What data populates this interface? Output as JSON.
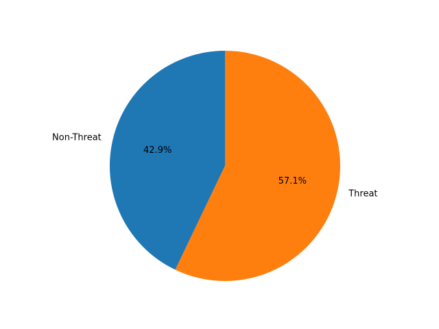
{
  "chart_data": {
    "type": "pie",
    "title": "",
    "categories": [
      "Non-Threat",
      "Threat"
    ],
    "values": [
      42.9,
      57.1
    ],
    "percent_labels": [
      "42.9%",
      "57.1%"
    ],
    "colors": [
      "#1f77b4",
      "#ff7f0e"
    ],
    "start_angle_deg": 90,
    "direction": "counterclockwise",
    "legend": "none"
  }
}
